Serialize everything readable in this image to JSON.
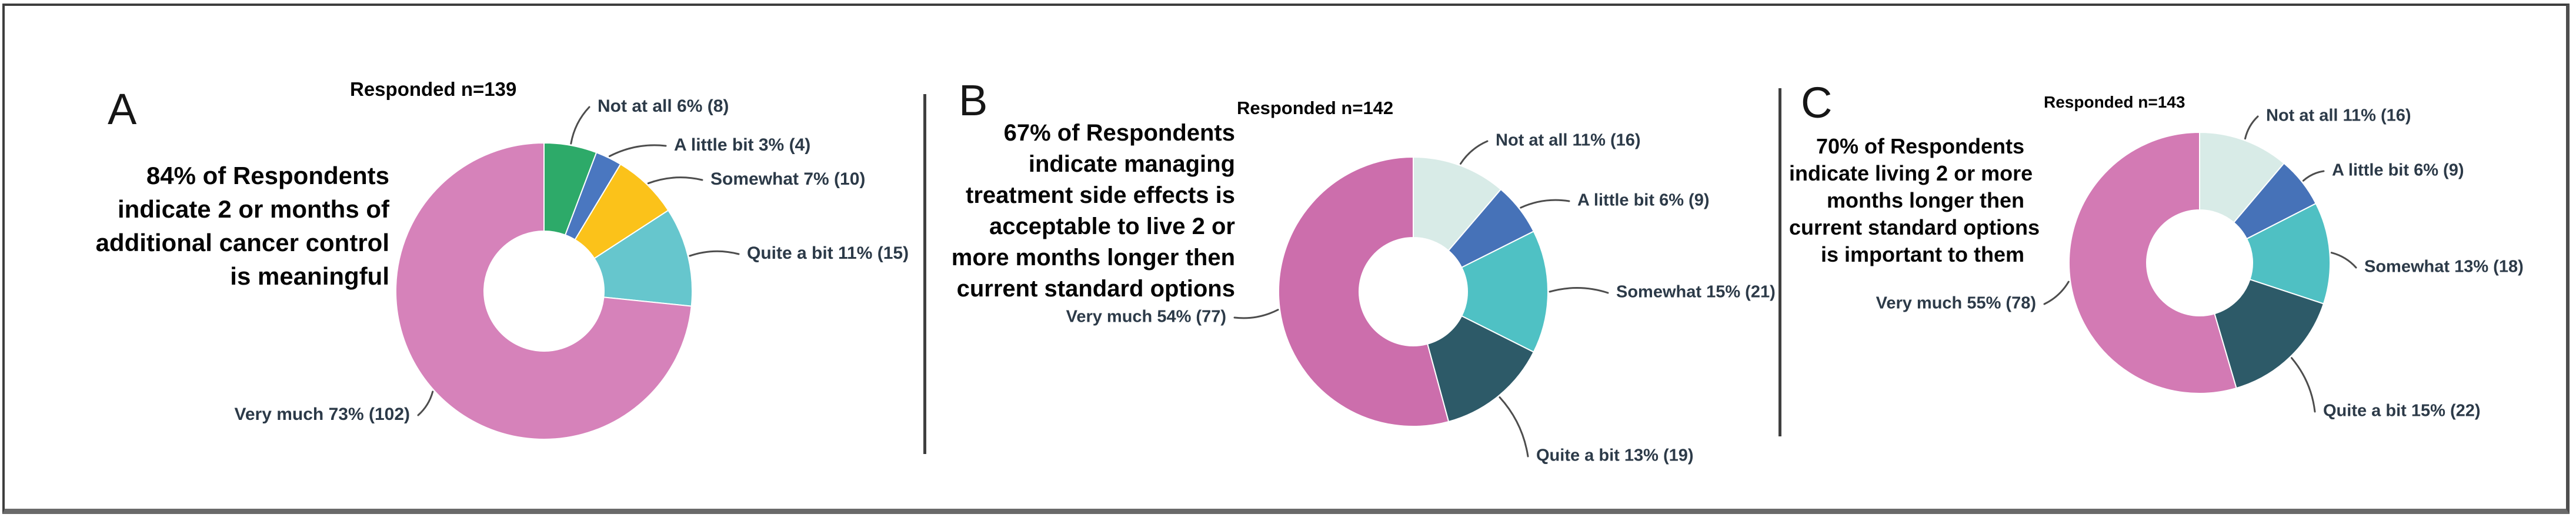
{
  "chart_data": [
    {
      "type": "pie",
      "subtype": "donut",
      "panel_letter": "A",
      "responded_label": "Responded n=139",
      "statement_lines": [
        "84% of Respondents",
        "indicate 2 or months of",
        "additional cancer control",
        "is meaningful"
      ],
      "statement_text": "84% of Respondents indicate 2 or months of additional cancer control is meaningful",
      "categories": [
        "Not at all",
        "A little bit",
        "Somewhat",
        "Quite a bit",
        "Very much"
      ],
      "values": [
        8,
        4,
        10,
        15,
        102
      ],
      "percents": [
        6,
        3,
        7,
        11,
        73
      ],
      "total_responded": 139,
      "slices": [
        {
          "label": "Not at all 6% (8)",
          "name": "Not at all",
          "pct": 6,
          "count": 8,
          "color": "#2DAA69"
        },
        {
          "label": "A little bit 3% (4)",
          "name": "A little bit",
          "pct": 3,
          "count": 4,
          "color": "#4A77C0"
        },
        {
          "label": "Somewhat 7% (10)",
          "name": "Somewhat",
          "pct": 7,
          "count": 10,
          "color": "#FBC21A"
        },
        {
          "label": "Quite a bit 11% (15)",
          "name": "Quite a bit",
          "pct": 11,
          "count": 15,
          "color": "#66C6CD"
        },
        {
          "label": "Very much 73% (102)",
          "name": "Very much",
          "pct": 73,
          "count": 102,
          "color": "#D682BA"
        }
      ]
    },
    {
      "type": "pie",
      "subtype": "donut",
      "panel_letter": "B",
      "responded_label": "Responded n=142",
      "statement_lines": [
        "67% of Respondents",
        "indicate managing",
        "treatment side effects is",
        "acceptable to live 2 or",
        "more months longer then",
        "current standard options"
      ],
      "statement_text": "67% of Respondents indicate managing treatment side effects is acceptable to live 2 or more months longer then current standard options",
      "categories": [
        "Not at all",
        "A little bit",
        "Somewhat",
        "Quite a bit",
        "Very much"
      ],
      "values": [
        16,
        9,
        21,
        19,
        77
      ],
      "percents": [
        11,
        6,
        15,
        13,
        54
      ],
      "total_responded": 142,
      "slices": [
        {
          "label": "Not at all 11% (16)",
          "name": "Not at all",
          "pct": 11,
          "count": 16,
          "color": "#D8EBE7"
        },
        {
          "label": "A little bit 6% (9)",
          "name": "A little bit",
          "pct": 6,
          "count": 9,
          "color": "#4672B8"
        },
        {
          "label": "Somewhat 15% (21)",
          "name": "Somewhat",
          "pct": 15,
          "count": 21,
          "color": "#4FC1C4"
        },
        {
          "label": "Quite a bit 13% (19)",
          "name": "Quite a bit",
          "pct": 13,
          "count": 19,
          "color": "#2D5A68"
        },
        {
          "label": "Very much 54% (77)",
          "name": "Very much",
          "pct": 54,
          "count": 77,
          "color": "#CC6EAC"
        }
      ]
    },
    {
      "type": "pie",
      "subtype": "donut",
      "panel_letter": "C",
      "responded_label": "Responded n=143",
      "statement_lines": [
        "70% of Respondents",
        "indicate living 2 or more",
        "months longer then",
        "current standard options",
        "is important to them"
      ],
      "statement_text": "70% of Respondents indicate living 2 or more months longer then current standard options is important to them",
      "categories": [
        "Not at all",
        "A little bit",
        "Somewhat",
        "Quite a bit",
        "Very much"
      ],
      "values": [
        16,
        9,
        18,
        22,
        78
      ],
      "percents": [
        11,
        6,
        13,
        15,
        55
      ],
      "total_responded": 143,
      "slices": [
        {
          "label": "Not at all 11% (16)",
          "name": "Not at all",
          "pct": 11,
          "count": 16,
          "color": "#D8EBE7"
        },
        {
          "label": "A little bit 6% (9)",
          "name": "A little bit",
          "pct": 6,
          "count": 9,
          "color": "#4672B8"
        },
        {
          "label": "Somewhat 13% (18)",
          "name": "Somewhat",
          "pct": 13,
          "count": 18,
          "color": "#4FC0C3"
        },
        {
          "label": "Quite a bit 15% (22)",
          "name": "Quite a bit",
          "pct": 15,
          "count": 22,
          "color": "#2D5A68"
        },
        {
          "label": "Very much 55% (78)",
          "name": "Very much",
          "pct": 55,
          "count": 78,
          "color": "#D37AB4"
        }
      ]
    }
  ],
  "style": {
    "label_text_color": "#2C3A48",
    "leader_line_color": "#4D4D4D",
    "frame_color": "#3E3E3E",
    "background": "#FFFFFF"
  }
}
